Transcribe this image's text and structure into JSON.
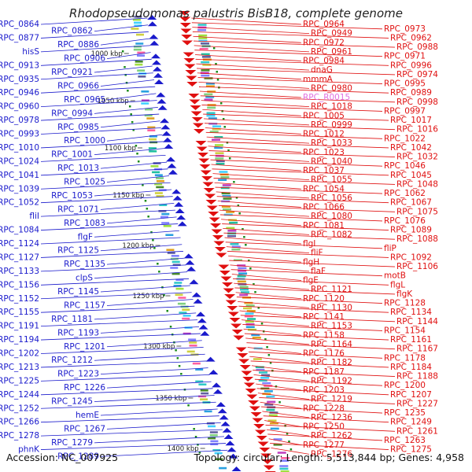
{
  "title": "Rhodopseudomonas palustris BisB18, complete genome",
  "accession": "Accession: NC_007925",
  "summary": "Topology: circular; Length: 5,513,844 bp; Genes: 4,958",
  "colors": {
    "forward_gene": "#1a1acc",
    "reverse_gene": "#e01010",
    "rna_gene": "#e070e0",
    "backbone": "#8c8c8c",
    "ticks": "#1a8a1a"
  },
  "scale_ticks": [
    "1000 kbp",
    "1050 kbp",
    "1100 kbp",
    "1150 kbp",
    "1200 kbp",
    "1250 kbp",
    "1300 kbp",
    "1350 kbp",
    "1400 kbp"
  ],
  "forward_labels": [
    {
      "text": "RPC_0864"
    },
    {
      "text": "RPC_0862"
    },
    {
      "text": "RPC_0877"
    },
    {
      "text": "RPC_0886"
    },
    {
      "text": "hisS"
    },
    {
      "text": "RPC_0906"
    },
    {
      "text": "RPC_0913"
    },
    {
      "text": "RPC_0921"
    },
    {
      "text": "RPC_0935"
    },
    {
      "text": "RPC_0966"
    },
    {
      "text": "RPC_0946"
    },
    {
      "text": "RPC_0965"
    },
    {
      "text": "RPC_0960"
    },
    {
      "text": "RPC_0994"
    },
    {
      "text": "RPC_0978"
    },
    {
      "text": "RPC_0985"
    },
    {
      "text": "RPC_0993"
    },
    {
      "text": "RPC_1000"
    },
    {
      "text": "RPC_1010"
    },
    {
      "text": "RPC_1001"
    },
    {
      "text": "RPC_1024"
    },
    {
      "text": "RPC_1013"
    },
    {
      "text": "RPC_1041"
    },
    {
      "text": "RPC_1025"
    },
    {
      "text": "RPC_1039"
    },
    {
      "text": "RPC_1053"
    },
    {
      "text": "RPC_1052"
    },
    {
      "text": "RPC_1071"
    },
    {
      "text": "fliI"
    },
    {
      "text": "RPC_1083"
    },
    {
      "text": "RPC_1084"
    },
    {
      "text": "flgF"
    },
    {
      "text": "RPC_1124"
    },
    {
      "text": "RPC_1125"
    },
    {
      "text": "RPC_1127"
    },
    {
      "text": "RPC_1135"
    },
    {
      "text": "RPC_1133"
    },
    {
      "text": "clpS"
    },
    {
      "text": "RPC_1156"
    },
    {
      "text": "RPC_1145"
    },
    {
      "text": "RPC_1152"
    },
    {
      "text": "RPC_1157"
    },
    {
      "text": "RPC_1155"
    },
    {
      "text": "RPC_1181"
    },
    {
      "text": "RPC_1191"
    },
    {
      "text": "RPC_1193"
    },
    {
      "text": "RPC_1194"
    },
    {
      "text": "RPC_1201"
    },
    {
      "text": "RPC_1202"
    },
    {
      "text": "RPC_1212"
    },
    {
      "text": "RPC_1213"
    },
    {
      "text": "RPC_1223"
    },
    {
      "text": "RPC_1225"
    },
    {
      "text": "RPC_1226"
    },
    {
      "text": "RPC_1244"
    },
    {
      "text": "RPC_1245"
    },
    {
      "text": "RPC_1252"
    },
    {
      "text": "hemE"
    },
    {
      "text": "RPC_1266"
    },
    {
      "text": "RPC_1267"
    },
    {
      "text": "RPC_1278"
    },
    {
      "text": "RPC_1279"
    },
    {
      "text": "phnK"
    },
    {
      "text": "RPC_1289"
    }
  ],
  "reverse_labels": [
    {
      "text": "RPC_0964"
    },
    {
      "text": "RPC_0973"
    },
    {
      "text": "RPC_0949"
    },
    {
      "text": "RPC_0962"
    },
    {
      "text": "RPC_0972"
    },
    {
      "text": "RPC_0988"
    },
    {
      "text": "RPC_0961"
    },
    {
      "text": "RPC_0971"
    },
    {
      "text": "RPC_0984"
    },
    {
      "text": "RPC_0996"
    },
    {
      "text": "dnaG"
    },
    {
      "text": "RPC_0974"
    },
    {
      "text": "mmmA"
    },
    {
      "text": "RPC_0995"
    },
    {
      "text": "RPC_0980"
    },
    {
      "text": "RPC_0989"
    },
    {
      "text": "RPC_R0015"
    },
    {
      "text": "RPC_0998"
    },
    {
      "text": "RPC_1018"
    },
    {
      "text": "RPC_0997"
    },
    {
      "text": "RPC_1005"
    },
    {
      "text": "RPC_1017"
    },
    {
      "text": "RPC_0999"
    },
    {
      "text": "RPC_1016"
    },
    {
      "text": "RPC_1012"
    },
    {
      "text": "RPC_1022"
    },
    {
      "text": "RPC_1033"
    },
    {
      "text": "RPC_1042"
    },
    {
      "text": "RPC_1023"
    },
    {
      "text": "RPC_1032"
    },
    {
      "text": "RPC_1040"
    },
    {
      "text": "RPC_1046"
    },
    {
      "text": "RPC_1037"
    },
    {
      "text": "RPC_1045"
    },
    {
      "text": "RPC_1055"
    },
    {
      "text": "RPC_1048"
    },
    {
      "text": "RPC_1054"
    },
    {
      "text": "RPC_1062"
    },
    {
      "text": "RPC_1056"
    },
    {
      "text": "RPC_1067"
    },
    {
      "text": "RPC_1066"
    },
    {
      "text": "RPC_1075"
    },
    {
      "text": "RPC_1080"
    },
    {
      "text": "RPC_1076"
    },
    {
      "text": "RPC_1081"
    },
    {
      "text": "RPC_1089"
    },
    {
      "text": "RPC_1082"
    },
    {
      "text": "RPC_1088"
    },
    {
      "text": "flgI"
    },
    {
      "text": "fliP"
    },
    {
      "text": "fliF"
    },
    {
      "text": "RPC_1092"
    },
    {
      "text": "flgH"
    },
    {
      "text": "RPC_1106"
    },
    {
      "text": "flaF"
    },
    {
      "text": "motB"
    },
    {
      "text": "flgE"
    },
    {
      "text": "flgL"
    },
    {
      "text": "RPC_1121"
    },
    {
      "text": "flgK"
    },
    {
      "text": "RPC_1120"
    },
    {
      "text": "RPC_1128"
    },
    {
      "text": "RPC_1130"
    },
    {
      "text": "RPC_1134"
    },
    {
      "text": "RPC_1141"
    },
    {
      "text": "RPC_1144"
    },
    {
      "text": "RPC_1153"
    },
    {
      "text": "RPC_1154"
    },
    {
      "text": "RPC_1158"
    },
    {
      "text": "RPC_1161"
    },
    {
      "text": "RPC_1164"
    },
    {
      "text": "RPC_1167"
    },
    {
      "text": "RPC_1176"
    },
    {
      "text": "RPC_1178"
    },
    {
      "text": "RPC_1182"
    },
    {
      "text": "RPC_1184"
    },
    {
      "text": "RPC_1187"
    },
    {
      "text": "RPC_1188"
    },
    {
      "text": "RPC_1192"
    },
    {
      "text": "RPC_1200"
    },
    {
      "text": "RPC_1203"
    },
    {
      "text": "RPC_1207"
    },
    {
      "text": "RPC_1219"
    },
    {
      "text": "RPC_1227"
    },
    {
      "text": "RPC_1228"
    },
    {
      "text": "RPC_1235"
    },
    {
      "text": "RPC_1236"
    },
    {
      "text": "RPC_1249"
    },
    {
      "text": "RPC_1250"
    },
    {
      "text": "RPC_1261"
    },
    {
      "text": "RPC_1262"
    },
    {
      "text": "RPC_1263"
    },
    {
      "text": "RPC_1277"
    },
    {
      "text": "RPC_1275"
    },
    {
      "text": "RPC_1276"
    }
  ]
}
